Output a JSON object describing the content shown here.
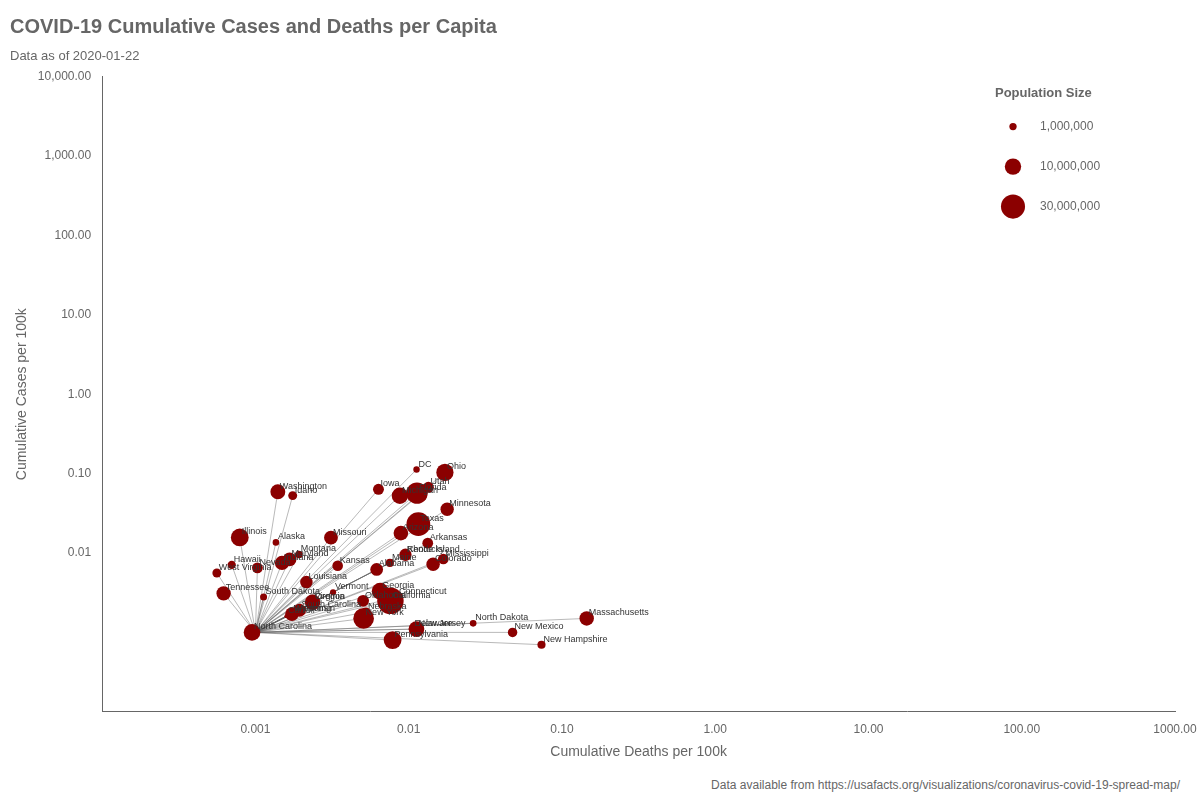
{
  "chart_data": {
    "type": "bubble",
    "title": "COVID-19 Cumulative Cases and Deaths per Capita",
    "subtitle": "Data as of 2020-01-22",
    "xlabel": "Cumulative Deaths per 100k",
    "ylabel": "Cumulative Cases per 100k",
    "footer": "Data available from https://usafacts.org/visualizations/coronavirus-covid-19-spread-map/",
    "point_labels": [
      "Washington",
      "Illinois",
      "Alaska",
      "Indiana",
      "Hawaii",
      "Nevada",
      "West Virginia",
      "Tennessee",
      "Idaho",
      "Montana",
      "Louisiana",
      "South Dakota",
      "North Carolina",
      "Iowa",
      "Maryland",
      "Wisconsin",
      "Maine",
      "Vermont",
      "Carroll",
      "Virginia",
      "Rhode Island",
      "Michigan",
      "Kansas",
      "Georgia",
      "Oregon",
      "Pennsylvania",
      "Missouri",
      "Arizona",
      "Alabama",
      "Kentucky",
      "Oklahoma",
      "New York",
      "Florida",
      "DC",
      "Utah",
      "Texas",
      "Minnesota",
      "Arkansas",
      "Colorado",
      "Mississippi",
      "California",
      "Connecticut",
      "Nebraska",
      "New Jersey",
      "Delaware",
      "North Dakota",
      "New Mexico",
      "New Hampshire",
      "Massachusetts",
      "Ohio",
      "South Carolina",
      "Wyoming"
    ],
    "x": [
      0.0014,
      0.00079,
      0.00136,
      0.00149,
      0.0007,
      0.00103,
      0.00056,
      0.00062,
      0.00175,
      0.00192,
      0.00215,
      0.00113,
      0.00095,
      0.00635,
      0.00167,
      0.00173,
      0.00754,
      0.00321,
      0.00159,
      0.00236,
      0.00943,
      0.00876,
      0.00344,
      0.00651,
      0.00237,
      0.00785,
      0.00311,
      0.00889,
      0.00618,
      0.00952,
      0.00504,
      0.00508,
      0.01133,
      0.01125,
      0.01344,
      0.01156,
      0.01782,
      0.01331,
      0.01443,
      0.01682,
      0.0076,
      0.00839,
      0.00527,
      0.01124,
      0.01057,
      0.02633,
      0.04762,
      0.07353,
      0.145,
      0.01723,
      0.00194,
      0.00173
    ],
    "values": [
      0.0591,
      0.0157,
      0.0136,
      0.0075,
      0.0071,
      0.0065,
      0.0056,
      0.0031,
      0.0528,
      0.0096,
      0.0043,
      0.0028,
      0.001,
      0.0635,
      0.0083,
      0.0017,
      0.0075,
      0.0032,
      0.0016,
      0.0024,
      0.0094,
      0.0526,
      0.0069,
      0.0033,
      0.0024,
      0.0008,
      0.0156,
      0.0178,
      0.0062,
      0.0095,
      0.0025,
      0.0015,
      0.0567,
      0.1125,
      0.0672,
      0.0231,
      0.0356,
      0.0133,
      0.0072,
      0.0084,
      0.0025,
      0.0028,
      0.0018,
      0.0011,
      0.0011,
      0.0013,
      0.001,
      0.0007,
      0.0015,
      0.1034,
      0.0019,
      0.0017
    ],
    "sizes": [
      7614893,
      12671821,
      731545,
      6732219,
      1415872,
      3080156,
      1792147,
      6829174,
      1787065,
      1068778,
      4648794,
      884659,
      10488084,
      3155070,
      6045680,
      5822434,
      1344212,
      623989,
      167134,
      8535519,
      1059361,
      9986857,
      2913314,
      10617423,
      4217737,
      12801989,
      6137428,
      7278717,
      4903185,
      4467673,
      3956971,
      19453561,
      21477737,
      705749,
      3205958,
      28995881,
      5639632,
      3017804,
      5758736,
      2976149,
      39512223,
      3565287,
      1934408,
      8882190,
      973764,
      762062,
      2096829,
      1359711,
      6949503,
      11689100,
      5148714,
      578759
    ],
    "color": "#8b0000",
    "origin": {
      "x": 0.001,
      "y": 0.001
    },
    "log": true,
    "xlim": [
      0.0001,
      1000
    ],
    "ylim": [
      0.0001,
      10000
    ],
    "xticks": [
      0.001,
      0.01,
      {
        "value": 0.1,
        "label": "0.10"
      },
      {
        "value": 1,
        "label": "1.00"
      },
      {
        "value": 10,
        "label": "10.00"
      },
      {
        "value": 100,
        "label": "100.00"
      },
      {
        "value": 1000,
        "label": "1000.00"
      }
    ],
    "yticks": [
      0.01,
      {
        "value": 0.1,
        "label": "0.10"
      },
      {
        "value": 1,
        "label": "1.00"
      },
      {
        "value": 10,
        "label": "10.00"
      },
      {
        "value": 100,
        "label": "100.00"
      },
      {
        "value": 1000,
        "label": "1,000.00"
      },
      {
        "value": 10000,
        "label": "10,000.00"
      }
    ],
    "grid": false,
    "legend": "upper right",
    "legend_title": "Population Size",
    "legend_sizes": [
      1000000,
      10000000,
      30000000
    ],
    "legend_labels": [
      "1,000,000",
      "10,000,000",
      "30,000,000"
    ]
  }
}
